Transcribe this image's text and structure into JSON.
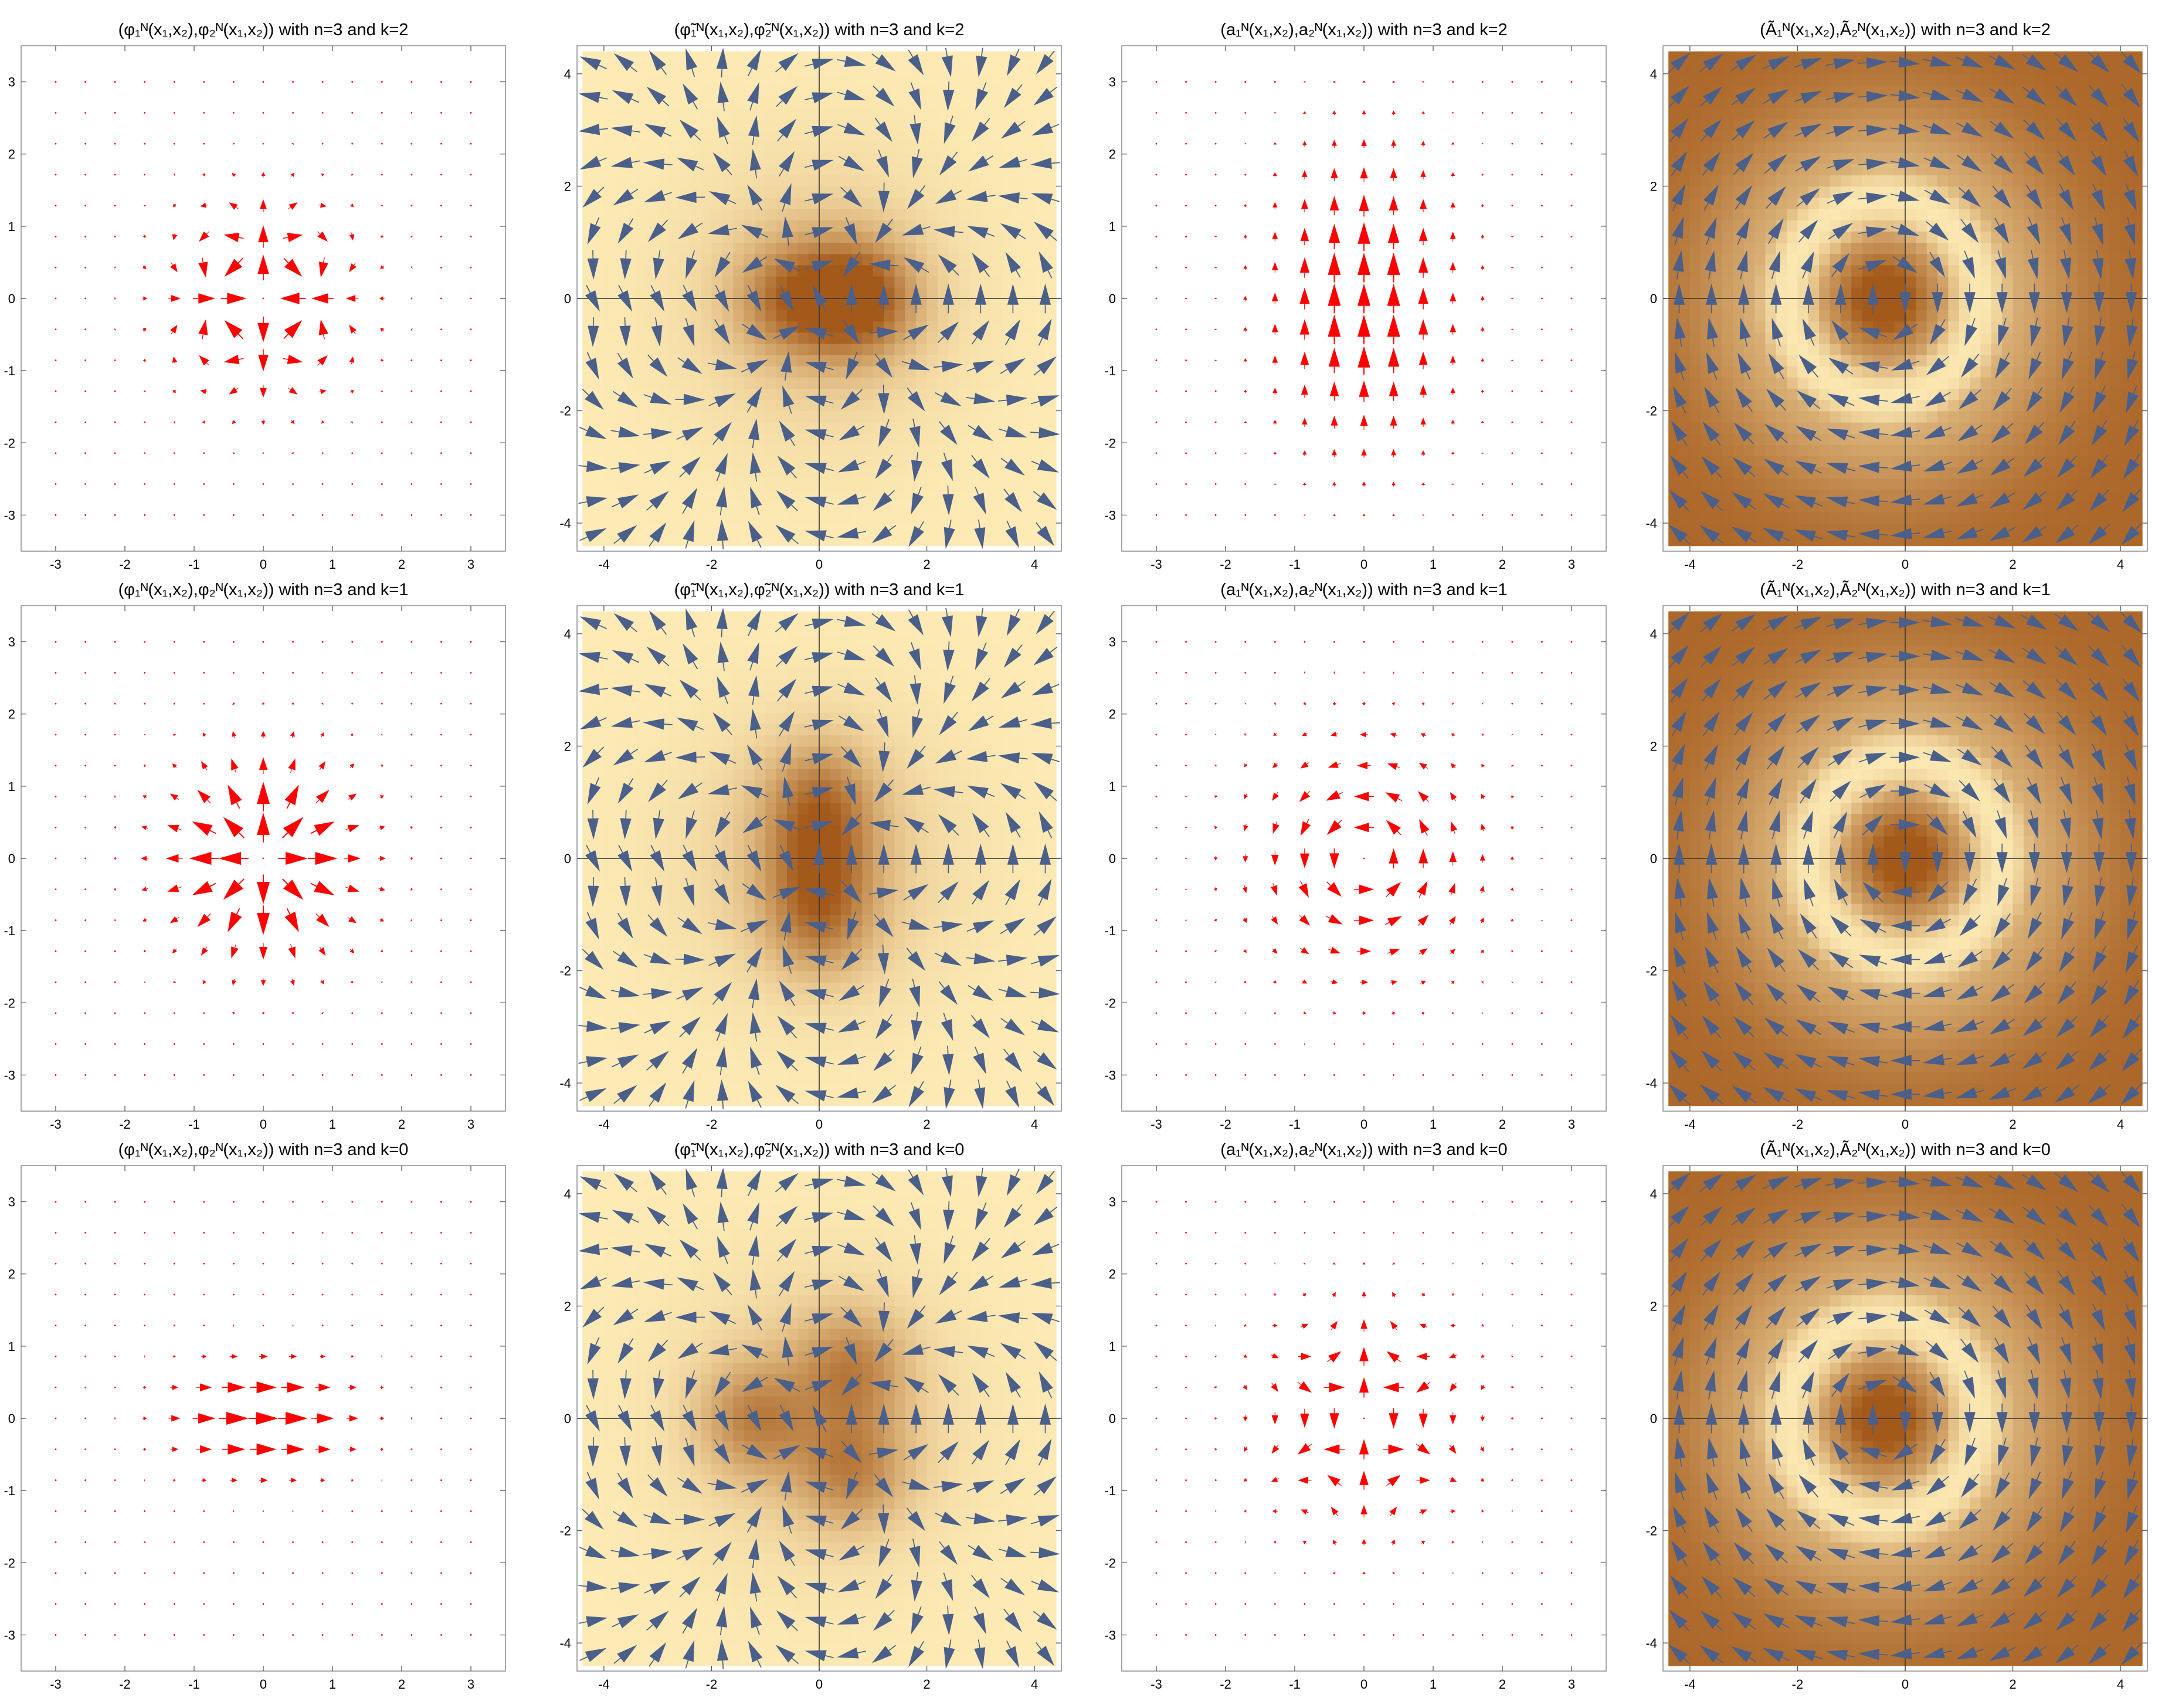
{
  "figure": {
    "arrow_colors": {
      "plain": "#ff0000",
      "density": "#4a5f8a"
    },
    "density_palette": {
      "light": "#fdeab4",
      "dark": "#a3591a"
    }
  },
  "chart_data": [
    {
      "type": "vector",
      "title": "(φ₁ᴺ(x₁,x₂),φ₂ᴺ(x₁,x₂)) with n=3 and k=2",
      "field": "phi",
      "n": 3,
      "k": 2,
      "style": "plain",
      "xlim": [
        -3.5,
        3.5
      ],
      "ylim": [
        -3.5,
        3.5
      ],
      "axes_at_origin": false,
      "xticks": [
        "-3",
        "-2",
        "-1",
        "0",
        "1",
        "2",
        "3"
      ],
      "yticks": [
        "-3",
        "-2",
        "-1",
        "0",
        "1",
        "2",
        "3"
      ]
    },
    {
      "type": "vector_density",
      "title": "(φ̃₁ᴺ(x₁,x₂),φ̃₂ᴺ(x₁,x₂)) with n=3 and k=2",
      "field": "phitilde",
      "n": 3,
      "k": 2,
      "style": "density",
      "xlim": [
        -4.5,
        4.5
      ],
      "ylim": [
        -4.5,
        4.5
      ],
      "axes_at_origin": true,
      "xticks": [
        "-4",
        "-2",
        "0",
        "2",
        "4"
      ],
      "yticks": [
        "-4",
        "-2",
        "0",
        "2",
        "4"
      ]
    },
    {
      "type": "vector",
      "title": "(a₁ᴺ(x₁,x₂),a₂ᴺ(x₁,x₂)) with n=3 and k=2",
      "field": "a",
      "n": 3,
      "k": 2,
      "style": "plain",
      "xlim": [
        -3.5,
        3.5
      ],
      "ylim": [
        -3.5,
        3.5
      ],
      "axes_at_origin": false,
      "xticks": [
        "-3",
        "-2",
        "-1",
        "0",
        "1",
        "2",
        "3"
      ],
      "yticks": [
        "-3",
        "-2",
        "-1",
        "0",
        "1",
        "2",
        "3"
      ]
    },
    {
      "type": "vector_density",
      "title": "(Ã₁ᴺ(x₁,x₂),Ã₂ᴺ(x₁,x₂)) with n=3 and k=2",
      "field": "Atilde",
      "n": 3,
      "k": 2,
      "style": "density",
      "xlim": [
        -4.5,
        4.5
      ],
      "ylim": [
        -4.5,
        4.5
      ],
      "axes_at_origin": true,
      "xticks": [
        "-4",
        "-2",
        "0",
        "2",
        "4"
      ],
      "yticks": [
        "-4",
        "-2",
        "0",
        "2",
        "4"
      ]
    },
    {
      "type": "vector",
      "title": "(φ₁ᴺ(x₁,x₂),φ₂ᴺ(x₁,x₂)) with n=3 and k=1",
      "field": "phi",
      "n": 3,
      "k": 1,
      "style": "plain",
      "xlim": [
        -3.5,
        3.5
      ],
      "ylim": [
        -3.5,
        3.5
      ],
      "axes_at_origin": false,
      "xticks": [
        "-3",
        "-2",
        "-1",
        "0",
        "1",
        "2",
        "3"
      ],
      "yticks": [
        "-3",
        "-2",
        "-1",
        "0",
        "1",
        "2",
        "3"
      ]
    },
    {
      "type": "vector_density",
      "title": "(φ̃₁ᴺ(x₁,x₂),φ̃₂ᴺ(x₁,x₂)) with n=3 and k=1",
      "field": "phitilde",
      "n": 3,
      "k": 1,
      "style": "density",
      "xlim": [
        -4.5,
        4.5
      ],
      "ylim": [
        -4.5,
        4.5
      ],
      "axes_at_origin": true,
      "xticks": [
        "-4",
        "-2",
        "0",
        "2",
        "4"
      ],
      "yticks": [
        "-4",
        "-2",
        "0",
        "2",
        "4"
      ]
    },
    {
      "type": "vector",
      "title": "(a₁ᴺ(x₁,x₂),a₂ᴺ(x₁,x₂)) with n=3 and k=1",
      "field": "a",
      "n": 3,
      "k": 1,
      "style": "plain",
      "xlim": [
        -3.5,
        3.5
      ],
      "ylim": [
        -3.5,
        3.5
      ],
      "axes_at_origin": false,
      "xticks": [
        "-3",
        "-2",
        "-1",
        "0",
        "1",
        "2",
        "3"
      ],
      "yticks": [
        "-3",
        "-2",
        "-1",
        "0",
        "1",
        "2",
        "3"
      ]
    },
    {
      "type": "vector_density",
      "title": "(Ã₁ᴺ(x₁,x₂),Ã₂ᴺ(x₁,x₂)) with n=3 and k=1",
      "field": "Atilde",
      "n": 3,
      "k": 1,
      "style": "density",
      "xlim": [
        -4.5,
        4.5
      ],
      "ylim": [
        -4.5,
        4.5
      ],
      "axes_at_origin": true,
      "xticks": [
        "-4",
        "-2",
        "0",
        "2",
        "4"
      ],
      "yticks": [
        "-4",
        "-2",
        "0",
        "2",
        "4"
      ]
    },
    {
      "type": "vector",
      "title": "(φ₁ᴺ(x₁,x₂),φ₂ᴺ(x₁,x₂)) with n=3 and k=0",
      "field": "phi",
      "n": 3,
      "k": 0,
      "style": "plain",
      "xlim": [
        -3.5,
        3.5
      ],
      "ylim": [
        -3.5,
        3.5
      ],
      "axes_at_origin": false,
      "xticks": [
        "-3",
        "-2",
        "-1",
        "0",
        "1",
        "2",
        "3"
      ],
      "yticks": [
        "-3",
        "-2",
        "-1",
        "0",
        "1",
        "2",
        "3"
      ]
    },
    {
      "type": "vector_density",
      "title": "(φ̃₁ᴺ(x₁,x₂),φ̃₂ᴺ(x₁,x₂)) with n=3 and k=0",
      "field": "phitilde",
      "n": 3,
      "k": 0,
      "style": "density",
      "xlim": [
        -4.5,
        4.5
      ],
      "ylim": [
        -4.5,
        4.5
      ],
      "axes_at_origin": true,
      "xticks": [
        "-4",
        "-2",
        "0",
        "2",
        "4"
      ],
      "yticks": [
        "-4",
        "-2",
        "0",
        "2",
        "4"
      ]
    },
    {
      "type": "vector",
      "title": "(a₁ᴺ(x₁,x₂),a₂ᴺ(x₁,x₂)) with n=3 and k=0",
      "field": "a",
      "n": 3,
      "k": 0,
      "style": "plain",
      "xlim": [
        -3.5,
        3.5
      ],
      "ylim": [
        -3.5,
        3.5
      ],
      "axes_at_origin": false,
      "xticks": [
        "-3",
        "-2",
        "-1",
        "0",
        "1",
        "2",
        "3"
      ],
      "yticks": [
        "-3",
        "-2",
        "-1",
        "0",
        "1",
        "2",
        "3"
      ]
    },
    {
      "type": "vector_density",
      "title": "(Ã₁ᴺ(x₁,x₂),Ã₂ᴺ(x₁,x₂)) with n=3 and k=0",
      "field": "Atilde",
      "n": 3,
      "k": 0,
      "style": "density",
      "xlim": [
        -4.5,
        4.5
      ],
      "ylim": [
        -4.5,
        4.5
      ],
      "axes_at_origin": true,
      "xticks": [
        "-4",
        "-2",
        "0",
        "2",
        "4"
      ],
      "yticks": [
        "-4",
        "-2",
        "0",
        "2",
        "4"
      ]
    }
  ]
}
